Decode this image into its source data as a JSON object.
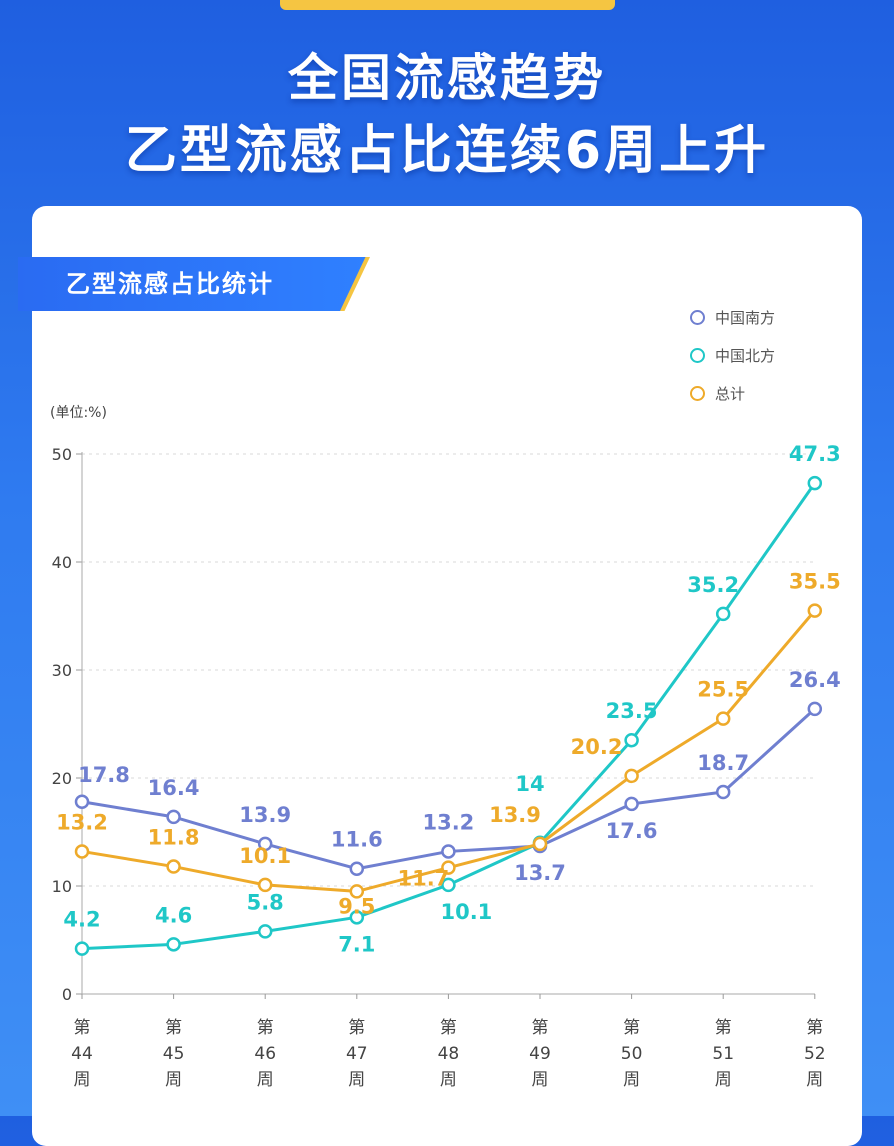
{
  "header": {
    "title_line1": "全国流感趋势",
    "title_line2": "乙型流感占比连续6周上升"
  },
  "card": {
    "badge": "乙型流感占比统计",
    "unit": "(单位:%)"
  },
  "colors": {
    "south": "#6f7fd0",
    "north": "#1fc7c7",
    "total": "#eeaa2a"
  },
  "chart_data": {
    "type": "line",
    "title": "乙型流感占比统计",
    "ylabel": "(单位:%)",
    "ylim": [
      0,
      50
    ],
    "yticks": [
      0,
      10,
      20,
      30,
      40,
      50
    ],
    "grid": true,
    "legend_position": "top-right",
    "categories": [
      "第44周",
      "第45周",
      "第46周",
      "第47周",
      "第48周",
      "第49周",
      "第50周",
      "第51周",
      "第52周"
    ],
    "category_lines": [
      [
        "第",
        "44",
        "周"
      ],
      [
        "第",
        "45",
        "周"
      ],
      [
        "第",
        "46",
        "周"
      ],
      [
        "第",
        "47",
        "周"
      ],
      [
        "第",
        "48",
        "周"
      ],
      [
        "第",
        "49",
        "周"
      ],
      [
        "第",
        "50",
        "周"
      ],
      [
        "第",
        "51",
        "周"
      ],
      [
        "第",
        "52",
        "周"
      ]
    ],
    "series": [
      {
        "name": "中国南方",
        "key": "south",
        "values": [
          17.8,
          16.4,
          13.9,
          11.6,
          13.2,
          13.7,
          17.6,
          18.7,
          26.4
        ]
      },
      {
        "name": "中国北方",
        "key": "north",
        "values": [
          4.2,
          4.6,
          5.8,
          7.1,
          10.1,
          14,
          23.5,
          35.2,
          47.3
        ]
      },
      {
        "name": "总计",
        "key": "total",
        "values": [
          13.2,
          11.8,
          10.1,
          9.5,
          11.7,
          13.9,
          20.2,
          25.5,
          35.5
        ]
      }
    ]
  }
}
